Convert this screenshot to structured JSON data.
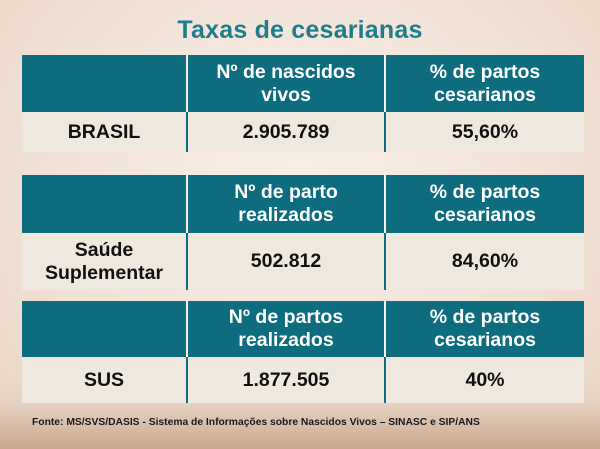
{
  "title": "Taxas de cesarianas",
  "tables": [
    {
      "header": [
        "",
        "Nº de nascidos vivos",
        "% de partos cesarianos"
      ],
      "header_lines": [
        [
          "",
          ""
        ],
        [
          "Nº de nascidos",
          "vivos"
        ],
        [
          "% de partos",
          "cesarianos"
        ]
      ],
      "row": {
        "label": "BRASIL",
        "total": "2.905.789",
        "percent": "55,60%"
      }
    },
    {
      "header": [
        "",
        "Nº de parto realizados",
        "% de partos cesarianos"
      ],
      "header_lines": [
        [
          "",
          ""
        ],
        [
          "Nº de parto",
          "realizados"
        ],
        [
          "% de partos",
          "cesarianos"
        ]
      ],
      "row": {
        "label": "Saúde Suplementar",
        "label_lines": [
          "Saúde",
          "Suplementar"
        ],
        "total": "502.812",
        "percent": "84,60%"
      }
    },
    {
      "header": [
        "",
        "Nº de partos realizados",
        "% de partos cesarianos"
      ],
      "header_lines": [
        [
          "",
          ""
        ],
        [
          "Nº de partos",
          "realizados"
        ],
        [
          "% de partos",
          "cesarianos"
        ]
      ],
      "row": {
        "label": "SUS",
        "total": "1.877.505",
        "percent": "40%"
      }
    }
  ],
  "source": "Fonte: MS/SVS/DASIS - Sistema de Informações sobre Nascidos Vivos – SINASC e SIP/ANS",
  "colors": {
    "header_bg": "#0e6c7f",
    "title": "#1f7d8c",
    "row_bg": "#efe8df"
  }
}
